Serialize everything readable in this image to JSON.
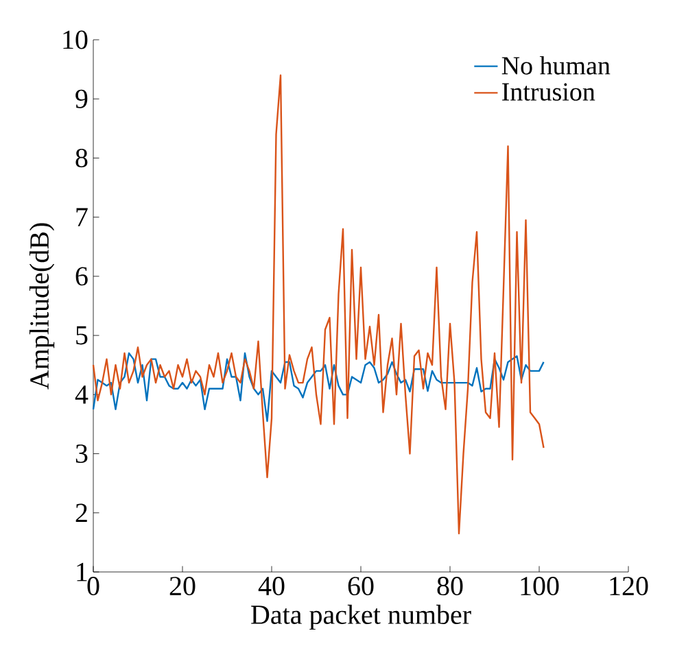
{
  "chart_data": {
    "type": "line",
    "xlabel": "Data packet number",
    "ylabel": "Amplitude(dB)",
    "x": [
      0,
      1,
      2,
      3,
      4,
      5,
      6,
      7,
      8,
      9,
      10,
      11,
      12,
      13,
      14,
      15,
      16,
      17,
      18,
      19,
      20,
      21,
      22,
      23,
      24,
      25,
      26,
      27,
      28,
      29,
      30,
      31,
      32,
      33,
      34,
      35,
      36,
      37,
      38,
      39,
      40,
      41,
      42,
      43,
      44,
      45,
      46,
      47,
      48,
      49,
      50,
      51,
      52,
      53,
      54,
      55,
      56,
      57,
      58,
      59,
      60,
      61,
      62,
      63,
      64,
      65,
      66,
      67,
      68,
      69,
      70,
      71,
      72,
      73,
      74,
      75,
      76,
      77,
      78,
      79,
      80,
      81,
      82,
      83,
      84,
      85,
      86,
      87,
      88,
      89,
      90,
      91,
      92,
      93,
      94,
      95,
      96,
      97,
      98,
      99,
      100,
      101
    ],
    "series": [
      {
        "name": "No human",
        "color": "#0072bd",
        "values": [
          3.75,
          4.25,
          4.2,
          4.15,
          4.2,
          3.75,
          4.2,
          4.3,
          4.7,
          4.6,
          4.2,
          4.5,
          3.9,
          4.6,
          4.6,
          4.3,
          4.3,
          4.15,
          4.1,
          4.1,
          4.2,
          4.1,
          4.25,
          4.15,
          4.25,
          3.75,
          4.1,
          4.1,
          4.1,
          4.1,
          4.6,
          4.3,
          4.3,
          3.9,
          4.7,
          4.3,
          4.1,
          4.0,
          4.1,
          3.55,
          4.4,
          4.3,
          4.2,
          4.55,
          4.55,
          4.15,
          4.1,
          3.95,
          4.2,
          4.3,
          4.4,
          4.4,
          4.5,
          4.1,
          4.5,
          4.15,
          4.0,
          4.0,
          4.3,
          4.25,
          4.2,
          4.5,
          4.55,
          4.45,
          4.2,
          4.25,
          4.35,
          4.55,
          4.35,
          4.2,
          4.25,
          4.05,
          4.43,
          4.43,
          4.43,
          4.06,
          4.4,
          4.25,
          4.2,
          4.2,
          4.2,
          4.2,
          4.2,
          4.2,
          4.2,
          4.15,
          4.45,
          4.05,
          4.1,
          4.1,
          4.6,
          4.45,
          4.25,
          4.55,
          4.6,
          4.65,
          4.25,
          4.5,
          4.4,
          4.4,
          4.4,
          4.55
        ]
      },
      {
        "name": "Intrusion",
        "color": "#d95319",
        "values": [
          4.5,
          3.9,
          4.2,
          4.6,
          4.0,
          4.5,
          4.1,
          4.7,
          4.2,
          4.4,
          4.8,
          4.3,
          4.5,
          4.6,
          4.2,
          4.5,
          4.3,
          4.4,
          4.1,
          4.5,
          4.3,
          4.6,
          4.2,
          4.4,
          4.3,
          4.0,
          4.5,
          4.3,
          4.7,
          4.2,
          4.4,
          4.7,
          4.3,
          4.2,
          4.6,
          4.4,
          4.1,
          4.9,
          3.7,
          2.6,
          3.6,
          8.4,
          9.4,
          4.1,
          4.67,
          4.4,
          4.2,
          4.2,
          4.6,
          4.8,
          4.0,
          3.5,
          5.1,
          5.3,
          3.5,
          5.7,
          6.8,
          3.6,
          6.45,
          4.6,
          6.15,
          4.6,
          5.15,
          4.5,
          5.35,
          3.7,
          4.5,
          4.95,
          4.0,
          5.2,
          4.0,
          3.0,
          4.65,
          4.75,
          4.1,
          4.7,
          4.5,
          6.15,
          4.3,
          3.75,
          5.2,
          4.2,
          1.65,
          3.0,
          4.1,
          5.9,
          6.75,
          4.6,
          3.7,
          3.6,
          4.7,
          3.45,
          5.8,
          8.2,
          2.9,
          6.75,
          4.2,
          6.95,
          3.7,
          3.6,
          3.5,
          3.1
        ]
      }
    ],
    "xlim": [
      0,
      120
    ],
    "ylim": [
      1,
      10
    ],
    "xticks": [
      0,
      20,
      40,
      60,
      80,
      100,
      120
    ],
    "yticks": [
      1,
      2,
      3,
      4,
      5,
      6,
      7,
      8,
      9,
      10
    ],
    "grid": false,
    "legend": "top right",
    "marker": "none",
    "line_style": "solid"
  }
}
